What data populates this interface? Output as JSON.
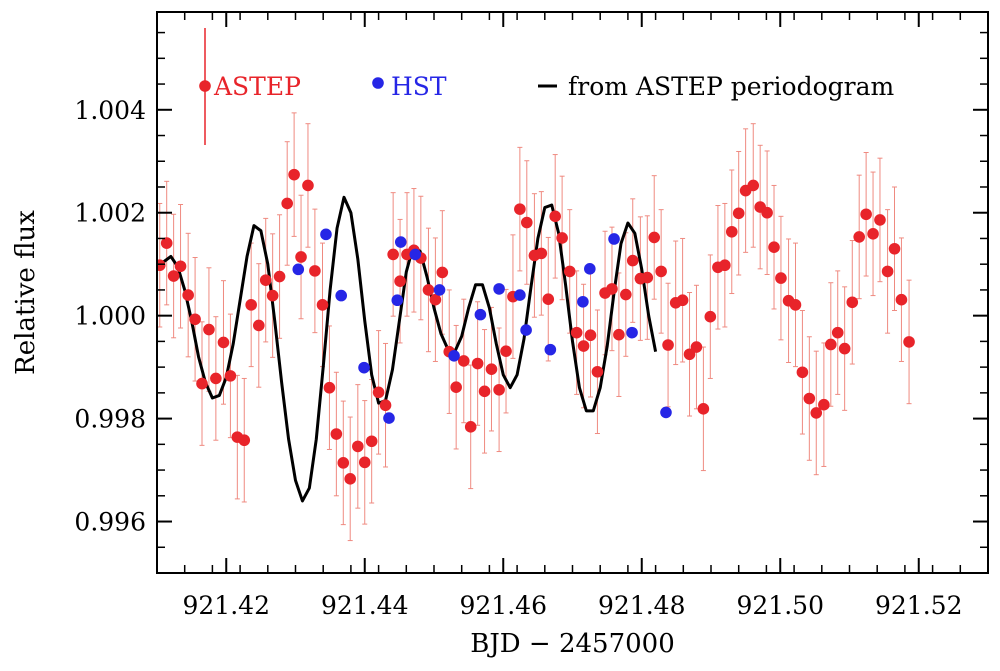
{
  "chart_data": {
    "type": "scatter",
    "xlabel": "BJD − 2457000",
    "ylabel": "Relative flux",
    "xlim": [
      921.41,
      921.53
    ],
    "ylim": [
      0.995,
      1.0059
    ],
    "x_ticks": [
      921.42,
      921.44,
      921.46,
      921.48,
      921.5,
      921.52
    ],
    "x_tick_labels": [
      "921.42",
      "921.44",
      "921.46",
      "921.48",
      "921.50",
      "921.52"
    ],
    "y_ticks": [
      0.996,
      0.998,
      1.0,
      1.002,
      1.004
    ],
    "y_tick_labels": [
      "0.996",
      "0.998",
      "1.000",
      "1.002",
      "1.004"
    ],
    "legend_placement": "top",
    "colors": {
      "astep": "#e8242a",
      "astep_error": "#ef8a80",
      "hst": "#2626e6",
      "model": "#000000"
    },
    "series": [
      {
        "name": "ASTEP",
        "kind": "points",
        "typical_error": 0.0012,
        "points": [
          [
            921.4104,
            1.00098
          ],
          [
            921.4114,
            1.00141
          ],
          [
            921.4124,
            1.00077
          ],
          [
            921.4134,
            1.00096
          ],
          [
            921.4145,
            1.0004
          ],
          [
            921.4155,
            0.99993
          ],
          [
            921.4165,
            0.99868
          ],
          [
            921.4175,
            0.99973
          ],
          [
            921.4185,
            0.99878
          ],
          [
            921.4196,
            0.99948
          ],
          [
            921.4206,
            0.99883
          ],
          [
            921.4216,
            0.99764
          ],
          [
            921.4226,
            0.99758
          ],
          [
            921.4236,
            1.00021
          ],
          [
            921.4247,
            0.99981
          ],
          [
            921.4257,
            1.00069
          ],
          [
            921.4267,
            1.00039
          ],
          [
            921.4277,
            1.00076
          ],
          [
            921.4288,
            1.00218
          ],
          [
            921.4298,
            1.00274
          ],
          [
            921.4308,
            1.00114
          ],
          [
            921.4318,
            1.00253
          ],
          [
            921.4328,
            1.00087
          ],
          [
            921.4339,
            1.00021
          ],
          [
            921.4349,
            0.9986
          ],
          [
            921.4359,
            0.9977
          ],
          [
            921.4369,
            0.99714
          ],
          [
            921.4379,
            0.99683
          ],
          [
            921.439,
            0.99746
          ],
          [
            921.44,
            0.99715
          ],
          [
            921.441,
            0.99756
          ],
          [
            921.442,
            0.99851
          ],
          [
            921.443,
            0.99826
          ],
          [
            921.4441,
            1.00119
          ],
          [
            921.4451,
            1.00067
          ],
          [
            921.4461,
            1.00119
          ],
          [
            921.4471,
            1.00127
          ],
          [
            921.4481,
            1.00112
          ],
          [
            921.4492,
            1.0005
          ],
          [
            921.4502,
            1.00031
          ],
          [
            921.4512,
            1.00084
          ],
          [
            921.4522,
            0.9993
          ],
          [
            921.4532,
            0.99861
          ],
          [
            921.4543,
            0.99912
          ],
          [
            921.4553,
            0.99784
          ],
          [
            921.4563,
            0.99907
          ],
          [
            921.4573,
            0.99853
          ],
          [
            921.4583,
            0.99896
          ],
          [
            921.4594,
            0.99856
          ],
          [
            921.4604,
            0.99931
          ],
          [
            921.4614,
            1.00037
          ],
          [
            921.4624,
            1.00207
          ],
          [
            921.4634,
            1.00181
          ],
          [
            921.4645,
            1.00117
          ],
          [
            921.4655,
            1.00121
          ],
          [
            921.4665,
            1.00032
          ],
          [
            921.4675,
            1.00193
          ],
          [
            921.4685,
            1.00151
          ],
          [
            921.4696,
            1.00086
          ],
          [
            921.4706,
            0.99967
          ],
          [
            921.4716,
            0.99941
          ],
          [
            921.4726,
            0.99962
          ],
          [
            921.4736,
            0.99891
          ],
          [
            921.4747,
            1.00044
          ],
          [
            921.4757,
            1.00052
          ],
          [
            921.4767,
            0.99963
          ],
          [
            921.4777,
            1.00041
          ],
          [
            921.4787,
            1.00107
          ],
          [
            921.4798,
            1.00072
          ],
          [
            921.4808,
            1.00074
          ],
          [
            921.4818,
            1.00152
          ],
          [
            921.4828,
            1.00086
          ],
          [
            921.4838,
            0.99943
          ],
          [
            921.4849,
            1.00025
          ],
          [
            921.4859,
            1.0003
          ],
          [
            921.4869,
            0.99925
          ],
          [
            921.4879,
            0.99939
          ],
          [
            921.4889,
            0.99819
          ],
          [
            921.4899,
            0.99998
          ],
          [
            921.491,
            1.00094
          ],
          [
            921.492,
            1.00098
          ],
          [
            921.493,
            1.00163
          ],
          [
            921.494,
            1.00199
          ],
          [
            921.495,
            1.00243
          ],
          [
            921.4961,
            1.00253
          ],
          [
            921.4971,
            1.00211
          ],
          [
            921.4981,
            1.002
          ],
          [
            921.4991,
            1.00133
          ],
          [
            921.5001,
            1.00073
          ],
          [
            921.5012,
            1.00029
          ],
          [
            921.5022,
            1.00021
          ],
          [
            921.5032,
            0.9989
          ],
          [
            921.5042,
            0.99839
          ],
          [
            921.5052,
            0.99811
          ],
          [
            921.5063,
            0.99827
          ],
          [
            921.5073,
            0.99944
          ],
          [
            921.5083,
            0.99967
          ],
          [
            921.5093,
            0.99936
          ],
          [
            921.5104,
            1.00026
          ],
          [
            921.5114,
            1.00153
          ],
          [
            921.5124,
            1.00197
          ],
          [
            921.5134,
            1.00159
          ],
          [
            921.5144,
            1.00186
          ],
          [
            921.5155,
            1.00086
          ],
          [
            921.5165,
            1.0013
          ],
          [
            921.5175,
            1.00031
          ],
          [
            921.5186,
            0.99949
          ]
        ]
      },
      {
        "name": "HST",
        "kind": "points",
        "points": [
          [
            921.4304,
            1.0009
          ],
          [
            921.4344,
            1.00158
          ],
          [
            921.4366,
            1.00039
          ],
          [
            921.4399,
            0.99899
          ],
          [
            921.4435,
            0.99801
          ],
          [
            921.4447,
            1.0003
          ],
          [
            921.4452,
            1.00143
          ],
          [
            921.4473,
            1.00119
          ],
          [
            921.4508,
            1.0005
          ],
          [
            921.4529,
            0.99922
          ],
          [
            921.4567,
            1.00002
          ],
          [
            921.4594,
            1.00052
          ],
          [
            921.4624,
            1.0004
          ],
          [
            921.4633,
            0.99972
          ],
          [
            921.4668,
            0.99934
          ],
          [
            921.4715,
            1.00027
          ],
          [
            921.4725,
            1.00091
          ],
          [
            921.476,
            1.00149
          ],
          [
            921.4786,
            0.99967
          ],
          [
            921.4835,
            0.99812
          ]
        ]
      },
      {
        "name": "from ASTEP periodogram",
        "kind": "line",
        "points": [
          [
            921.41,
            1.0009
          ],
          [
            921.411,
            1.00105
          ],
          [
            921.412,
            1.00115
          ],
          [
            921.413,
            1.00095
          ],
          [
            921.414,
            1.0005
          ],
          [
            921.415,
            0.9999
          ],
          [
            921.416,
            0.9992
          ],
          [
            921.417,
            0.9987
          ],
          [
            921.418,
            0.9984
          ],
          [
            921.419,
            0.99845
          ],
          [
            921.42,
            0.9988
          ],
          [
            921.421,
            0.99945
          ],
          [
            921.422,
            1.0003
          ],
          [
            921.423,
            1.00115
          ],
          [
            921.424,
            1.00175
          ],
          [
            921.425,
            1.00165
          ],
          [
            921.426,
            1.001
          ],
          [
            921.427,
            0.9999
          ],
          [
            921.428,
            0.9987
          ],
          [
            921.429,
            0.9976
          ],
          [
            921.43,
            0.9968
          ],
          [
            921.431,
            0.9964
          ],
          [
            921.432,
            0.99665
          ],
          [
            921.433,
            0.9976
          ],
          [
            921.434,
            0.999
          ],
          [
            921.435,
            1.0005
          ],
          [
            921.436,
            1.0017
          ],
          [
            921.437,
            1.0023
          ],
          [
            921.438,
            1.002
          ],
          [
            921.439,
            1.0011
          ],
          [
            921.44,
            0.9999
          ],
          [
            921.441,
            0.99885
          ],
          [
            921.442,
            0.9983
          ],
          [
            921.443,
            0.99835
          ],
          [
            921.444,
            0.99895
          ],
          [
            921.445,
            0.9999
          ],
          [
            921.446,
            1.00085
          ],
          [
            921.447,
            1.00135
          ],
          [
            921.448,
            1.00125
          ],
          [
            921.449,
            1.00075
          ],
          [
            921.45,
            1.00015
          ],
          [
            921.451,
            0.99965
          ],
          [
            921.452,
            0.99935
          ],
          [
            921.453,
            0.9993
          ],
          [
            921.454,
            0.9996
          ],
          [
            921.455,
            1.00015
          ],
          [
            921.456,
            1.0006
          ],
          [
            921.457,
            1.0006
          ],
          [
            921.458,
            1.00015
          ],
          [
            921.459,
            0.99945
          ],
          [
            921.46,
            0.99885
          ],
          [
            921.461,
            0.9986
          ],
          [
            921.462,
            0.99885
          ],
          [
            921.463,
            0.99955
          ],
          [
            921.464,
            1.00055
          ],
          [
            921.465,
            1.0015
          ],
          [
            921.466,
            1.0021
          ],
          [
            921.467,
            1.00215
          ],
          [
            921.468,
            1.0016
          ],
          [
            921.469,
            1.0006
          ],
          [
            921.47,
            0.9995
          ],
          [
            921.471,
            0.9986
          ],
          [
            921.472,
            0.99815
          ],
          [
            921.473,
            0.99815
          ],
          [
            921.474,
            0.9986
          ],
          [
            921.475,
            0.9994
          ],
          [
            921.476,
            1.00045
          ],
          [
            921.477,
            1.0014
          ],
          [
            921.478,
            1.0018
          ],
          [
            921.479,
            1.0016
          ],
          [
            921.48,
            1.0009
          ],
          [
            921.481,
            1.0
          ],
          [
            921.482,
            0.9993
          ]
        ]
      }
    ]
  }
}
